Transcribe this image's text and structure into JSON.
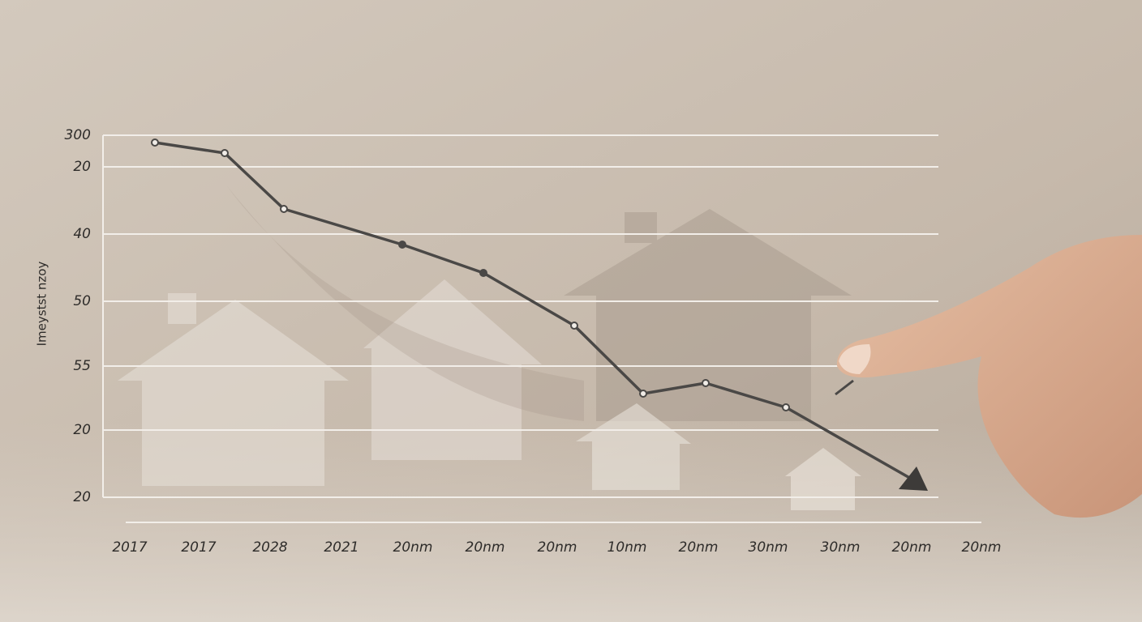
{
  "axis_title": "Imeystst nzoy",
  "y_labels": [
    "300",
    "20",
    "40",
    "50",
    "55",
    "20",
    "20"
  ],
  "x_labels": [
    "2017",
    "2017",
    "2028",
    "2021",
    "20nm",
    "20nm",
    "20nm",
    "10nm",
    "20nm",
    "30nm",
    "30nm",
    "20nm",
    "20nm"
  ]
}
